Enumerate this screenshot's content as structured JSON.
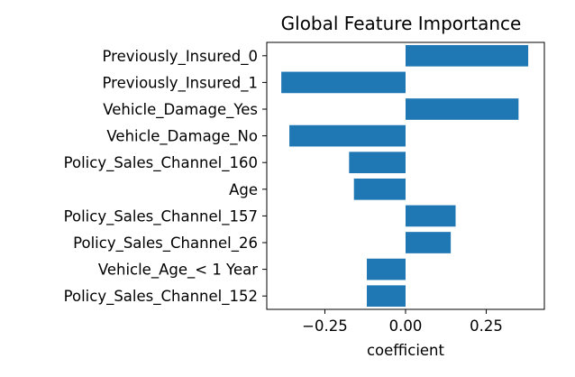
{
  "chart_data": {
    "type": "bar",
    "orientation": "horizontal",
    "title": "Global Feature Importance",
    "xlabel": "coefficient",
    "ylabel": "",
    "xlim": [
      -0.43,
      0.43
    ],
    "xticks": [
      -0.25,
      0.0,
      0.25
    ],
    "xtick_labels": [
      "−0.25",
      "0.00",
      "0.25"
    ],
    "grid": false,
    "bar_color": "#1f77b4",
    "categories": [
      "Previously_Insured_0",
      "Previously_Insured_1",
      "Vehicle_Damage_Yes",
      "Vehicle_Damage_No",
      "Policy_Sales_Channel_160",
      "Age",
      "Policy_Sales_Channel_157",
      "Policy_Sales_Channel_26",
      "Vehicle_Age_< 1 Year",
      "Policy_Sales_Channel_152"
    ],
    "values": [
      0.38,
      -0.385,
      0.35,
      -0.36,
      -0.175,
      -0.16,
      0.155,
      0.14,
      -0.12,
      -0.12
    ]
  }
}
